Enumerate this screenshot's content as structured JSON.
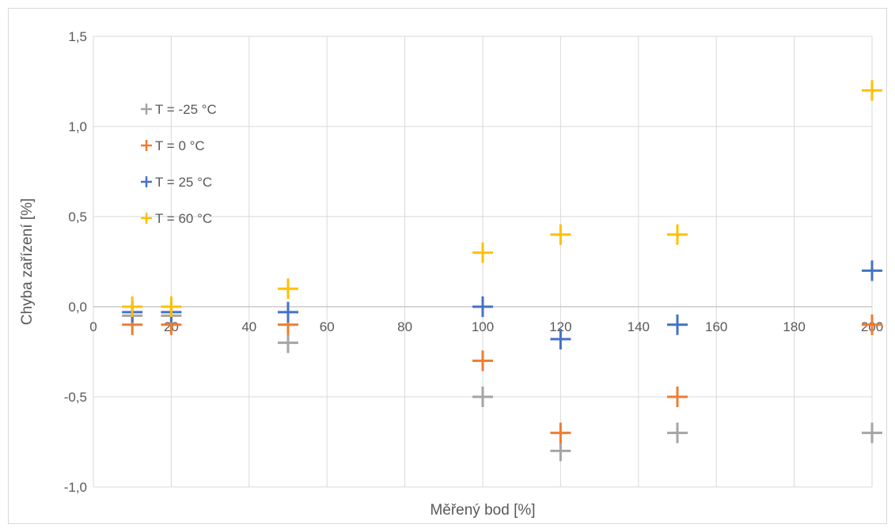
{
  "chart_data": {
    "type": "scatter",
    "xlabel": "Měřený bod [%]",
    "ylabel": "Chyba zařízení [%]",
    "xlim": [
      0,
      200
    ],
    "ylim": [
      -1.0,
      1.5
    ],
    "x_ticks": [
      "0",
      "20",
      "40",
      "60",
      "80",
      "100",
      "120",
      "140",
      "160",
      "180",
      "200"
    ],
    "y_ticks": [
      "1,5",
      "1,0",
      "0,5",
      "0,0",
      "-0,5",
      "-1,0"
    ],
    "grid": true,
    "legend_position": "left",
    "series": [
      {
        "name": "T = -25 °C",
        "color": "#a5a5a5",
        "x": [
          10,
          20,
          50,
          100,
          120,
          150,
          200
        ],
        "y": [
          -0.05,
          -0.05,
          -0.2,
          -0.5,
          -0.8,
          -0.7,
          -0.7
        ]
      },
      {
        "name": "T = 0 °C",
        "color": "#ed7d31",
        "x": [
          10,
          20,
          50,
          100,
          120,
          150,
          200
        ],
        "y": [
          -0.1,
          -0.1,
          -0.1,
          -0.3,
          -0.7,
          -0.5,
          -0.1
        ]
      },
      {
        "name": "T = 25 °C",
        "color": "#4472c4",
        "x": [
          10,
          20,
          50,
          100,
          120,
          150,
          200
        ],
        "y": [
          -0.03,
          -0.03,
          -0.03,
          0.0,
          -0.18,
          -0.1,
          0.2
        ]
      },
      {
        "name": "T = 60 °C",
        "color": "#ffc000",
        "x": [
          10,
          20,
          50,
          100,
          120,
          150,
          200
        ],
        "y": [
          0.0,
          0.0,
          0.1,
          0.3,
          0.4,
          0.4,
          1.2
        ]
      }
    ]
  }
}
